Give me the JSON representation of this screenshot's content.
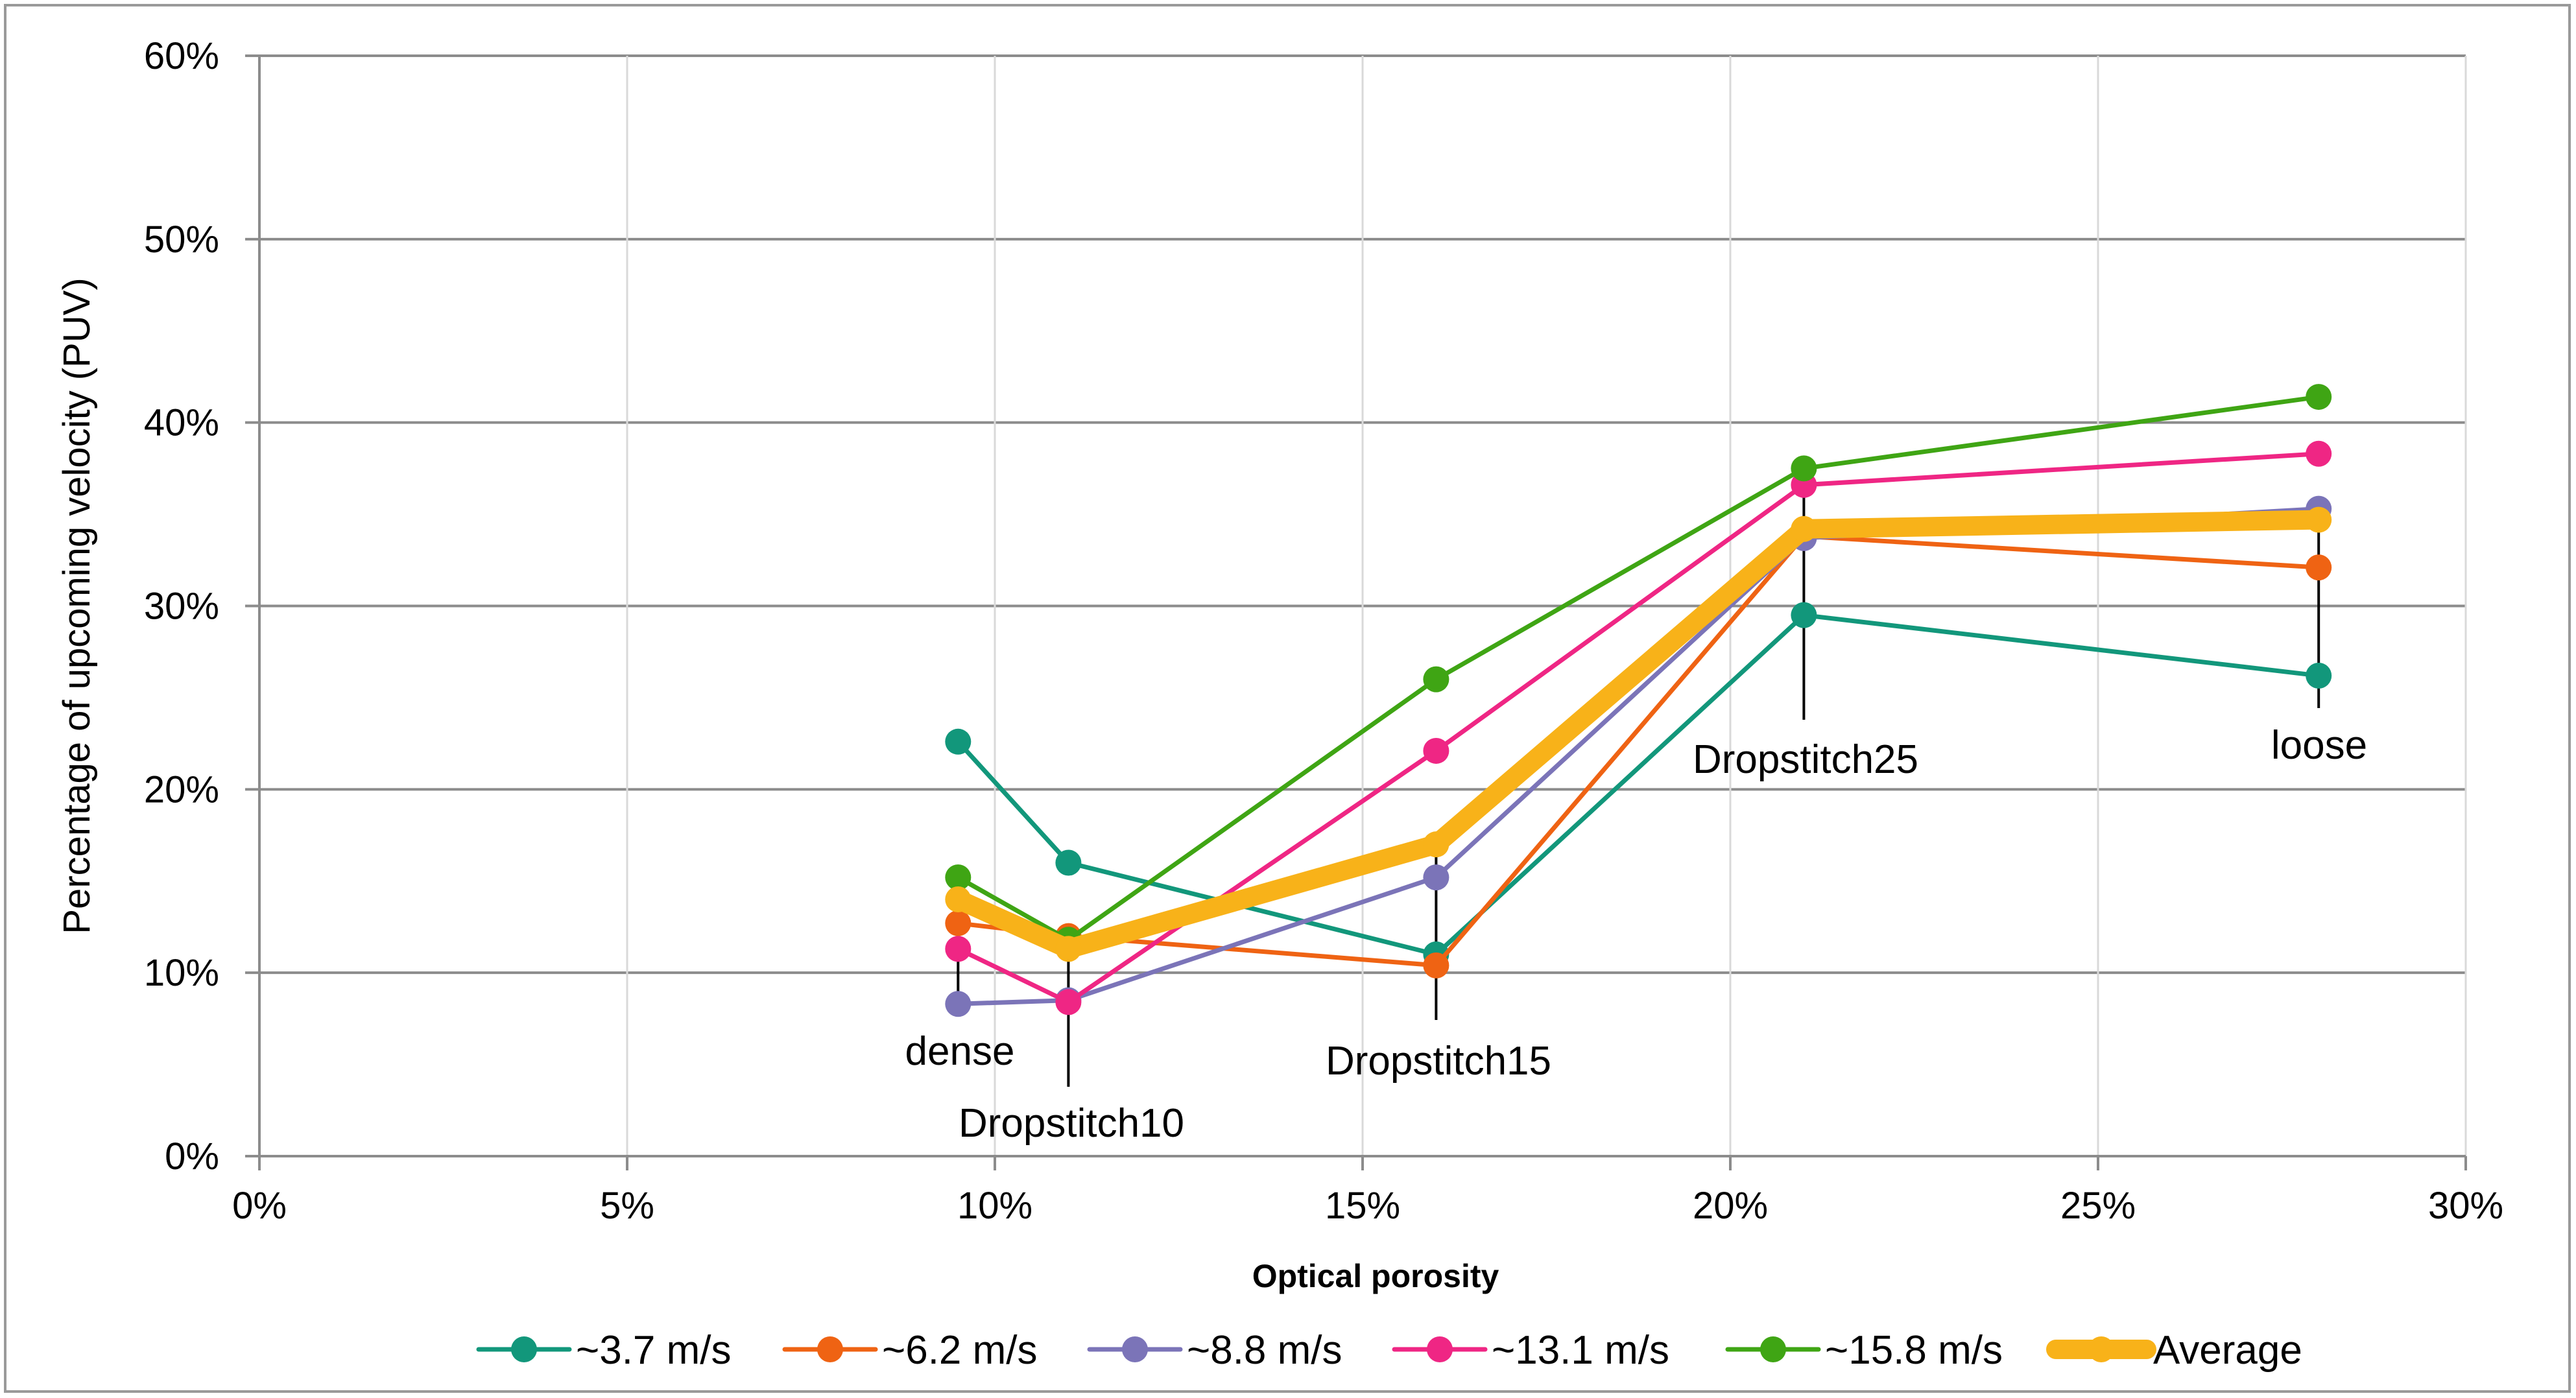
{
  "chart_data": {
    "type": "line",
    "title": "",
    "xlabel": "Optical porosity",
    "ylabel": "Percentage of upcoming velocity (PUV)",
    "xlim": [
      0,
      30
    ],
    "ylim": [
      0,
      60
    ],
    "x_ticks": [
      "0%",
      "5%",
      "10%",
      "15%",
      "20%",
      "25%",
      "30%"
    ],
    "y_ticks": [
      "0%",
      "10%",
      "20%",
      "30%",
      "40%",
      "50%",
      "60%"
    ],
    "x": [
      9.5,
      11,
      16,
      21,
      28
    ],
    "series": [
      {
        "name": "~3.7 m/s",
        "color": "#12977b",
        "values": [
          22.6,
          16.0,
          11.0,
          29.5,
          26.2
        ]
      },
      {
        "name": "~6.2 m/s",
        "color": "#ef6313",
        "values": [
          12.7,
          12.0,
          10.4,
          33.8,
          32.1
        ]
      },
      {
        "name": "~8.8 m/s",
        "color": "#7b74b8",
        "values": [
          8.3,
          8.5,
          15.2,
          33.7,
          35.3
        ]
      },
      {
        "name": "~13.1 m/s",
        "color": "#ef2684",
        "values": [
          11.3,
          8.4,
          22.1,
          36.6,
          38.3
        ]
      },
      {
        "name": "~15.8 m/s",
        "color": "#3fa514",
        "values": [
          15.2,
          11.8,
          26.0,
          37.5,
          41.4
        ]
      },
      {
        "name": "Average",
        "color": "#f8b219",
        "values": [
          14.0,
          11.3,
          17.0,
          34.2,
          34.7
        ]
      }
    ],
    "annotations": [
      {
        "text": "dense",
        "x": 9.5
      },
      {
        "text": "Dropstitch10",
        "x": 11
      },
      {
        "text": "Dropstitch15",
        "x": 16
      },
      {
        "text": "Dropstitch25",
        "x": 21
      },
      {
        "text": "loose",
        "x": 28
      }
    ],
    "grid": true,
    "legend_position": "bottom"
  }
}
